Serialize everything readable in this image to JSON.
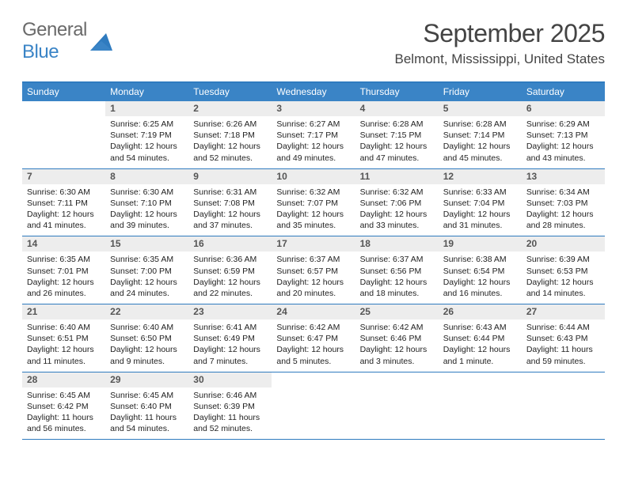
{
  "logo": {
    "word1": "General",
    "word2": "Blue"
  },
  "title": "September 2025",
  "location": "Belmont, Mississippi, United States",
  "colors": {
    "header_bg": "#3a84c6",
    "header_border": "#2f7bbf",
    "daynum_bg": "#ededed",
    "text": "#222222",
    "title_color": "#444444"
  },
  "daysOfWeek": [
    "Sunday",
    "Monday",
    "Tuesday",
    "Wednesday",
    "Thursday",
    "Friday",
    "Saturday"
  ],
  "weeks": [
    [
      {
        "n": "",
        "sr": "",
        "ss": "",
        "dl": ""
      },
      {
        "n": "1",
        "sr": "Sunrise: 6:25 AM",
        "ss": "Sunset: 7:19 PM",
        "dl": "Daylight: 12 hours and 54 minutes."
      },
      {
        "n": "2",
        "sr": "Sunrise: 6:26 AM",
        "ss": "Sunset: 7:18 PM",
        "dl": "Daylight: 12 hours and 52 minutes."
      },
      {
        "n": "3",
        "sr": "Sunrise: 6:27 AM",
        "ss": "Sunset: 7:17 PM",
        "dl": "Daylight: 12 hours and 49 minutes."
      },
      {
        "n": "4",
        "sr": "Sunrise: 6:28 AM",
        "ss": "Sunset: 7:15 PM",
        "dl": "Daylight: 12 hours and 47 minutes."
      },
      {
        "n": "5",
        "sr": "Sunrise: 6:28 AM",
        "ss": "Sunset: 7:14 PM",
        "dl": "Daylight: 12 hours and 45 minutes."
      },
      {
        "n": "6",
        "sr": "Sunrise: 6:29 AM",
        "ss": "Sunset: 7:13 PM",
        "dl": "Daylight: 12 hours and 43 minutes."
      }
    ],
    [
      {
        "n": "7",
        "sr": "Sunrise: 6:30 AM",
        "ss": "Sunset: 7:11 PM",
        "dl": "Daylight: 12 hours and 41 minutes."
      },
      {
        "n": "8",
        "sr": "Sunrise: 6:30 AM",
        "ss": "Sunset: 7:10 PM",
        "dl": "Daylight: 12 hours and 39 minutes."
      },
      {
        "n": "9",
        "sr": "Sunrise: 6:31 AM",
        "ss": "Sunset: 7:08 PM",
        "dl": "Daylight: 12 hours and 37 minutes."
      },
      {
        "n": "10",
        "sr": "Sunrise: 6:32 AM",
        "ss": "Sunset: 7:07 PM",
        "dl": "Daylight: 12 hours and 35 minutes."
      },
      {
        "n": "11",
        "sr": "Sunrise: 6:32 AM",
        "ss": "Sunset: 7:06 PM",
        "dl": "Daylight: 12 hours and 33 minutes."
      },
      {
        "n": "12",
        "sr": "Sunrise: 6:33 AM",
        "ss": "Sunset: 7:04 PM",
        "dl": "Daylight: 12 hours and 31 minutes."
      },
      {
        "n": "13",
        "sr": "Sunrise: 6:34 AM",
        "ss": "Sunset: 7:03 PM",
        "dl": "Daylight: 12 hours and 28 minutes."
      }
    ],
    [
      {
        "n": "14",
        "sr": "Sunrise: 6:35 AM",
        "ss": "Sunset: 7:01 PM",
        "dl": "Daylight: 12 hours and 26 minutes."
      },
      {
        "n": "15",
        "sr": "Sunrise: 6:35 AM",
        "ss": "Sunset: 7:00 PM",
        "dl": "Daylight: 12 hours and 24 minutes."
      },
      {
        "n": "16",
        "sr": "Sunrise: 6:36 AM",
        "ss": "Sunset: 6:59 PM",
        "dl": "Daylight: 12 hours and 22 minutes."
      },
      {
        "n": "17",
        "sr": "Sunrise: 6:37 AM",
        "ss": "Sunset: 6:57 PM",
        "dl": "Daylight: 12 hours and 20 minutes."
      },
      {
        "n": "18",
        "sr": "Sunrise: 6:37 AM",
        "ss": "Sunset: 6:56 PM",
        "dl": "Daylight: 12 hours and 18 minutes."
      },
      {
        "n": "19",
        "sr": "Sunrise: 6:38 AM",
        "ss": "Sunset: 6:54 PM",
        "dl": "Daylight: 12 hours and 16 minutes."
      },
      {
        "n": "20",
        "sr": "Sunrise: 6:39 AM",
        "ss": "Sunset: 6:53 PM",
        "dl": "Daylight: 12 hours and 14 minutes."
      }
    ],
    [
      {
        "n": "21",
        "sr": "Sunrise: 6:40 AM",
        "ss": "Sunset: 6:51 PM",
        "dl": "Daylight: 12 hours and 11 minutes."
      },
      {
        "n": "22",
        "sr": "Sunrise: 6:40 AM",
        "ss": "Sunset: 6:50 PM",
        "dl": "Daylight: 12 hours and 9 minutes."
      },
      {
        "n": "23",
        "sr": "Sunrise: 6:41 AM",
        "ss": "Sunset: 6:49 PM",
        "dl": "Daylight: 12 hours and 7 minutes."
      },
      {
        "n": "24",
        "sr": "Sunrise: 6:42 AM",
        "ss": "Sunset: 6:47 PM",
        "dl": "Daylight: 12 hours and 5 minutes."
      },
      {
        "n": "25",
        "sr": "Sunrise: 6:42 AM",
        "ss": "Sunset: 6:46 PM",
        "dl": "Daylight: 12 hours and 3 minutes."
      },
      {
        "n": "26",
        "sr": "Sunrise: 6:43 AM",
        "ss": "Sunset: 6:44 PM",
        "dl": "Daylight: 12 hours and 1 minute."
      },
      {
        "n": "27",
        "sr": "Sunrise: 6:44 AM",
        "ss": "Sunset: 6:43 PM",
        "dl": "Daylight: 11 hours and 59 minutes."
      }
    ],
    [
      {
        "n": "28",
        "sr": "Sunrise: 6:45 AM",
        "ss": "Sunset: 6:42 PM",
        "dl": "Daylight: 11 hours and 56 minutes."
      },
      {
        "n": "29",
        "sr": "Sunrise: 6:45 AM",
        "ss": "Sunset: 6:40 PM",
        "dl": "Daylight: 11 hours and 54 minutes."
      },
      {
        "n": "30",
        "sr": "Sunrise: 6:46 AM",
        "ss": "Sunset: 6:39 PM",
        "dl": "Daylight: 11 hours and 52 minutes."
      },
      {
        "n": "",
        "sr": "",
        "ss": "",
        "dl": ""
      },
      {
        "n": "",
        "sr": "",
        "ss": "",
        "dl": ""
      },
      {
        "n": "",
        "sr": "",
        "ss": "",
        "dl": ""
      },
      {
        "n": "",
        "sr": "",
        "ss": "",
        "dl": ""
      }
    ]
  ]
}
